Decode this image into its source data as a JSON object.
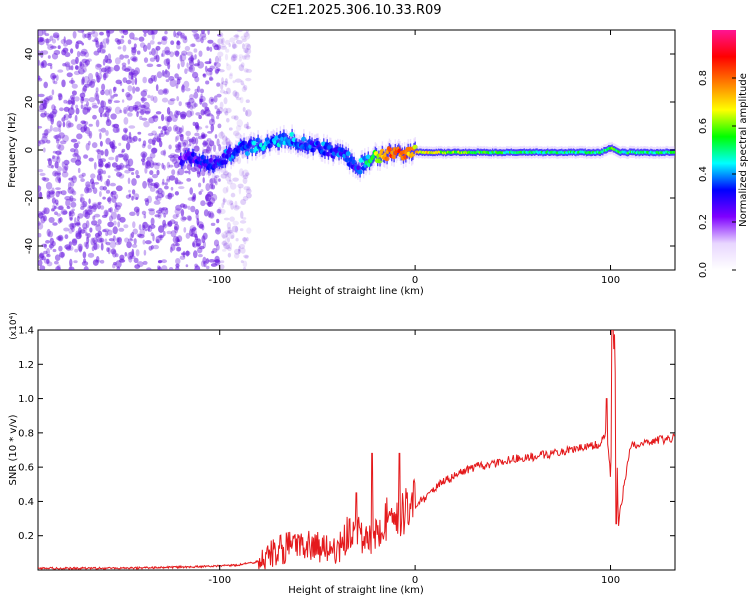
{
  "title": "C2E1.2025.306.10.33.R09",
  "colors": {
    "background": "#ffffff",
    "axis": "#000000",
    "snr_line": "#e41a1c",
    "scatter_purple": "#6a1be0"
  },
  "chart_data": [
    {
      "type": "heatmap",
      "name": "spectrogram",
      "xlabel": "Height of straight line (km)",
      "ylabel": "Frequency (Hz)",
      "xlim": [
        -193,
        133
      ],
      "ylim": [
        -50,
        50
      ],
      "xticks": [
        -100,
        0,
        100
      ],
      "yticks": [
        -40,
        -20,
        0,
        20,
        40
      ],
      "colorbar": {
        "label": "Normalized spectral amplitude",
        "range": [
          0,
          1
        ],
        "ticks": [
          "0.0",
          "0.2",
          "0.4",
          "0.6",
          "0.8"
        ],
        "stops": [
          "#ffffff",
          "#e8d6ff",
          "#7f00ff",
          "#0000ff",
          "#00ffff",
          "#00ff00",
          "#ffff00",
          "#ff7f00",
          "#ff0000",
          "#ff1493"
        ]
      },
      "noise_region": {
        "x": [
          -193,
          -100
        ],
        "y": [
          -50,
          50
        ],
        "amplitude": [
          0.05,
          0.2
        ]
      },
      "signal_ridge": {
        "x": [
          -120,
          -105,
          -90,
          -75,
          -65,
          -55,
          -45,
          -35,
          -30,
          -20,
          -10,
          0,
          20,
          50,
          80,
          95,
          100,
          105,
          133
        ],
        "freq": [
          -3,
          -6,
          0,
          3,
          5,
          2,
          0,
          -3,
          -8,
          -3,
          -1,
          -1,
          -1,
          -1,
          -1,
          -1,
          1,
          -1,
          -1
        ],
        "amplitude": [
          0.25,
          0.3,
          0.35,
          0.4,
          0.4,
          0.35,
          0.35,
          0.35,
          0.3,
          0.6,
          0.85,
          0.7,
          0.6,
          0.5,
          0.5,
          0.5,
          0.55,
          0.5,
          0.5
        ]
      }
    },
    {
      "type": "line",
      "name": "snr",
      "xlabel": "Height of straight line (km)",
      "ylabel": "SNR (10 * v/v)",
      "y_multiplier": "(x10⁴)",
      "xlim": [
        -193,
        133
      ],
      "ylim": [
        0,
        1.4
      ],
      "xticks": [
        -100,
        0,
        100
      ],
      "yticks": [
        "0.2",
        "0.4",
        "0.6",
        "0.8",
        "1.0",
        "1.2",
        "1.4"
      ],
      "series": [
        {
          "name": "SNR",
          "x": [
            -193,
            -150,
            -110,
            -90,
            -80,
            -70,
            -60,
            -50,
            -40,
            -35,
            -30,
            -25,
            -20,
            -15,
            -10,
            -5,
            0,
            5,
            10,
            20,
            30,
            40,
            50,
            60,
            70,
            80,
            90,
            95,
            98,
            100,
            102,
            104,
            110,
            120,
            133
          ],
          "y": [
            0.01,
            0.01,
            0.02,
            0.03,
            0.05,
            0.12,
            0.14,
            0.13,
            0.12,
            0.2,
            0.22,
            0.18,
            0.2,
            0.3,
            0.28,
            0.35,
            0.38,
            0.42,
            0.48,
            0.55,
            0.6,
            0.62,
            0.65,
            0.66,
            0.68,
            0.7,
            0.72,
            0.74,
            0.8,
            0.55,
            1.4,
            0.27,
            0.72,
            0.75,
            0.77
          ]
        }
      ],
      "spikes": [
        {
          "x": -22,
          "y": 0.68
        },
        {
          "x": -8,
          "y": 0.68
        },
        {
          "x": -30,
          "y": 0.45
        },
        {
          "x": 98,
          "y": 1.0
        },
        {
          "x": 101,
          "y": 1.4
        },
        {
          "x": 103,
          "y": 0.27
        }
      ]
    }
  ]
}
